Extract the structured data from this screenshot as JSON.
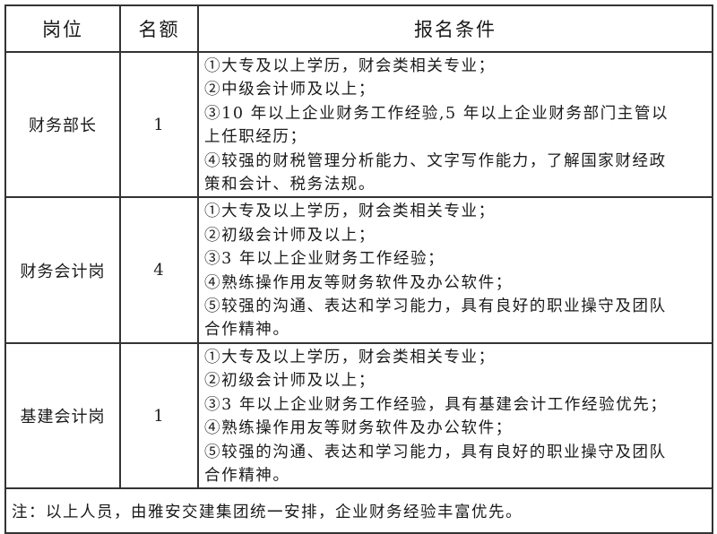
{
  "header": {
    "position": "岗位",
    "quota": "名额",
    "requirements": "报名条件"
  },
  "rows": [
    {
      "position": "财务部长",
      "quota": "1",
      "lines": [
        "①大专及以上学历，财会类相关专业；",
        "②中级会计师及以上；",
        "③10 年以上企业财务工作经验,5 年以上企业财务部门主管以",
        "上任职经历；",
        "④较强的财税管理分析能力、文字写作能力，了解国家财经政",
        "策和会计、税务法规。"
      ]
    },
    {
      "position": "财务会计岗",
      "quota": "4",
      "lines": [
        "①大专及以上学历，财会类相关专业；",
        "②初级会计师及以上；",
        "③3 年以上企业财务工作经验；",
        "④熟练操作用友等财务软件及办公软件；",
        "⑤较强的沟通、表达和学习能力，具有良好的职业操守及团队",
        "合作精神。"
      ]
    },
    {
      "position": "基建会计岗",
      "quota": "1",
      "lines": [
        "①大专及以上学历，财会类相关专业；",
        "②初级会计师及以上；",
        "③3 年以上企业财务工作经验，具有基建会计工作经验优先；",
        "④熟练操作用友等财务软件及办公软件；",
        "⑤较强的沟通、表达和学习能力，具有良好的职业操守及团队",
        "合作精神。"
      ]
    }
  ],
  "note": "注：以上人员，由雅安交建集团统一安排，企业财务经验丰富优先。"
}
